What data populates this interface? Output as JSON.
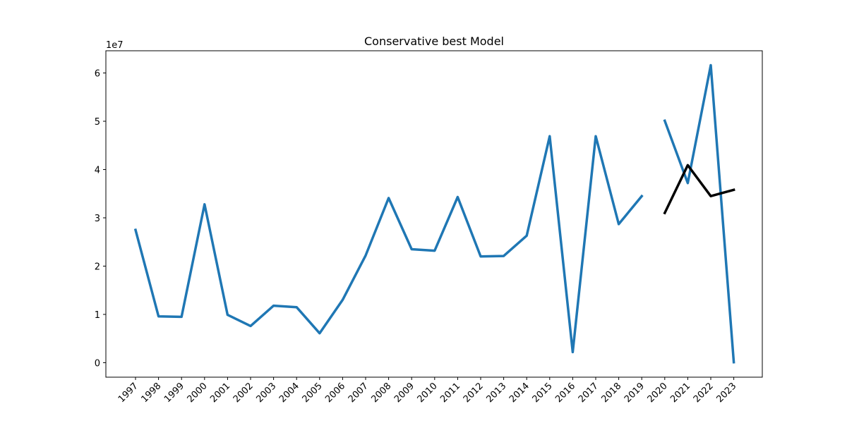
{
  "chart_data": {
    "type": "line",
    "title": "Conservative best Model",
    "xlabel": "",
    "ylabel": "",
    "y_offset_label": "1e7",
    "categories": [
      "1997",
      "1998",
      "1999",
      "2000",
      "2001",
      "2002",
      "2003",
      "2004",
      "2005",
      "2006",
      "2007",
      "2008",
      "2009",
      "2010",
      "2011",
      "2012",
      "2013",
      "2014",
      "2015",
      "2016",
      "2017",
      "2018",
      "2019",
      "2020",
      "2021",
      "2022",
      "2023"
    ],
    "ylim": [
      -3000000,
      64600000
    ],
    "yticks": [
      0,
      10000000,
      20000000,
      30000000,
      40000000,
      50000000,
      60000000
    ],
    "ytick_labels": [
      "0",
      "1",
      "2",
      "3",
      "4",
      "5",
      "6"
    ],
    "grid": false,
    "series": [
      {
        "color": "#1f77b4",
        "segments": [
          {
            "x": [
              "1997",
              "1998",
              "1999",
              "2000",
              "2001",
              "2002",
              "2003",
              "2004",
              "2005",
              "2006",
              "2007",
              "2008",
              "2009",
              "2010",
              "2011",
              "2012",
              "2013",
              "2014",
              "2015",
              "2016",
              "2017",
              "2018",
              "2019"
            ],
            "values": [
              27500000,
              9600000,
              9500000,
              32800000,
              9900000,
              7600000,
              11800000,
              11500000,
              6100000,
              13000000,
              22200000,
              34100000,
              23500000,
              23200000,
              34300000,
              22000000,
              22100000,
              26300000,
              46900000,
              2200000,
              46900000,
              28700000,
              34500000
            ]
          },
          {
            "x": [
              "2020",
              "2021",
              "2022",
              "2023"
            ],
            "values": [
              50100000,
              37200000,
              61600000,
              100000
            ]
          }
        ]
      },
      {
        "color": "#000000",
        "segments": [
          {
            "x": [
              "2020",
              "2021",
              "2022",
              "2023"
            ],
            "values": [
              31000000,
              40900000,
              34500000,
              35800000
            ]
          }
        ]
      }
    ]
  }
}
